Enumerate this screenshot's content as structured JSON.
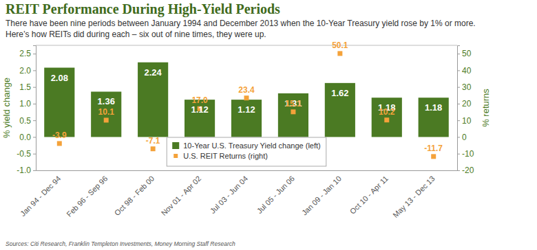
{
  "chart_data": {
    "type": "bar",
    "title": "REIT Performance During High-Yield Periods",
    "subtitle": [
      "There have been nine periods between January 1994 and December 2013 when the 10-Year Treasury yield rose by 1% or more.",
      "Here’s how REITs did during each – six out of nine times, they were up."
    ],
    "source": "Sources: Citi Research, Franklin Templeton Investments, Money Morning Staff Research",
    "y_label": "% yield change",
    "y2_label": "% returns",
    "categories": [
      "Jan 94 - Dec 94",
      "Feb 96 - Sep 96",
      "Oct 98 - Feb 00",
      "Nov 01 - Apr 02",
      "Jul 03 - Jun 04",
      "Jul 05 - Jun 06",
      "Jan 09 - Jan 10",
      "Oct 10 - Apr 11",
      "May 13 - Dec 13"
    ],
    "series": [
      {
        "name": "10-Year U.S. Treasury Yield change (left)",
        "type": "bar",
        "color": "#4b7a23",
        "values": [
          2.08,
          1.36,
          2.24,
          1.12,
          1.12,
          1.31,
          1.62,
          1.18,
          1.18
        ],
        "data_labels": true
      },
      {
        "name": "U.S. REIT Returns (right)",
        "type": "scatter",
        "marker": "square",
        "color": "#f4a23a",
        "axis": "y2",
        "values": [
          -3.9,
          10.1,
          -7.1,
          17.0,
          23.4,
          15.1,
          50.1,
          10.2,
          -11.7
        ],
        "value_labels": [
          "-3.9",
          "10.1",
          "-7.1",
          "17.0",
          "23.4",
          "15.1",
          "50.1",
          "10.2",
          "-11.7"
        ],
        "data_labels": true
      }
    ],
    "ylim": [
      -1.0,
      2.75
    ],
    "yticks": [
      {
        "value": -1.0,
        "label": "-1.0"
      },
      {
        "value": -0.5,
        "label": "-0.5"
      },
      {
        "value": 0.0,
        "label": "0.0"
      },
      {
        "value": 0.5,
        "label": "0.5"
      },
      {
        "value": 1.0,
        "label": "1.0"
      },
      {
        "value": 1.5,
        "label": "1.5"
      },
      {
        "value": 2.0,
        "label": "2.0"
      },
      {
        "value": 2.5,
        "label": "2.5"
      }
    ],
    "y2lim": [
      -20,
      55
    ],
    "y2ticks": [
      -20,
      -10,
      0,
      10,
      20,
      30,
      40,
      50
    ],
    "grid": false,
    "legend": "bottom"
  }
}
